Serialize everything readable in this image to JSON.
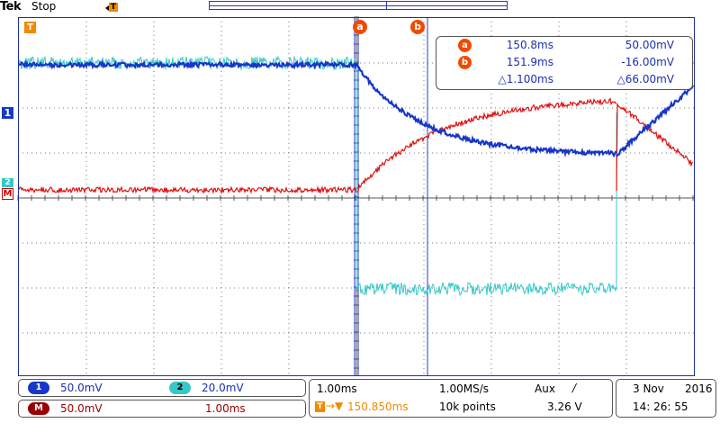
{
  "header": {
    "brand": "Tek",
    "run_state": "Stop",
    "trigger_marker": "T"
  },
  "markers": {
    "ch1": "1",
    "ch2": "2",
    "math": "M",
    "trigger": "T",
    "cursor_a": "a",
    "cursor_b": "b"
  },
  "cursor_readout": {
    "a_time": "150.8ms",
    "a_value": "50.00mV",
    "b_time": "151.9ms",
    "b_value": "-16.00mV",
    "delta_time": "△1.100ms",
    "delta_value": "△66.00mV"
  },
  "channels": {
    "ch1": {
      "label": "1",
      "scale": "50.0mV",
      "color": "#1836c8"
    },
    "ch2": {
      "label": "2",
      "scale": "20.0mV",
      "color": "#36c8c8"
    },
    "math": {
      "label": "M",
      "scale": "50.0mV",
      "time_scale": "1.00ms",
      "color": "#e01010"
    }
  },
  "timebase": {
    "horizontal_scale": "1.00ms",
    "sample_rate": "1.00MS/s",
    "trigger_source": "Aux",
    "trigger_slope": "/",
    "trigger_position": "150.850ms",
    "record_length": "10k points",
    "trigger_level": "3.26 V"
  },
  "datetime": {
    "day_month": "3 Nov",
    "year": "2016",
    "time": "14: 26: 55"
  },
  "colors": {
    "graticule": "#1a2f9e",
    "cursor": "#2a39c9",
    "trigger": "#f08a00",
    "cursor_badge": "#f04a00"
  }
}
